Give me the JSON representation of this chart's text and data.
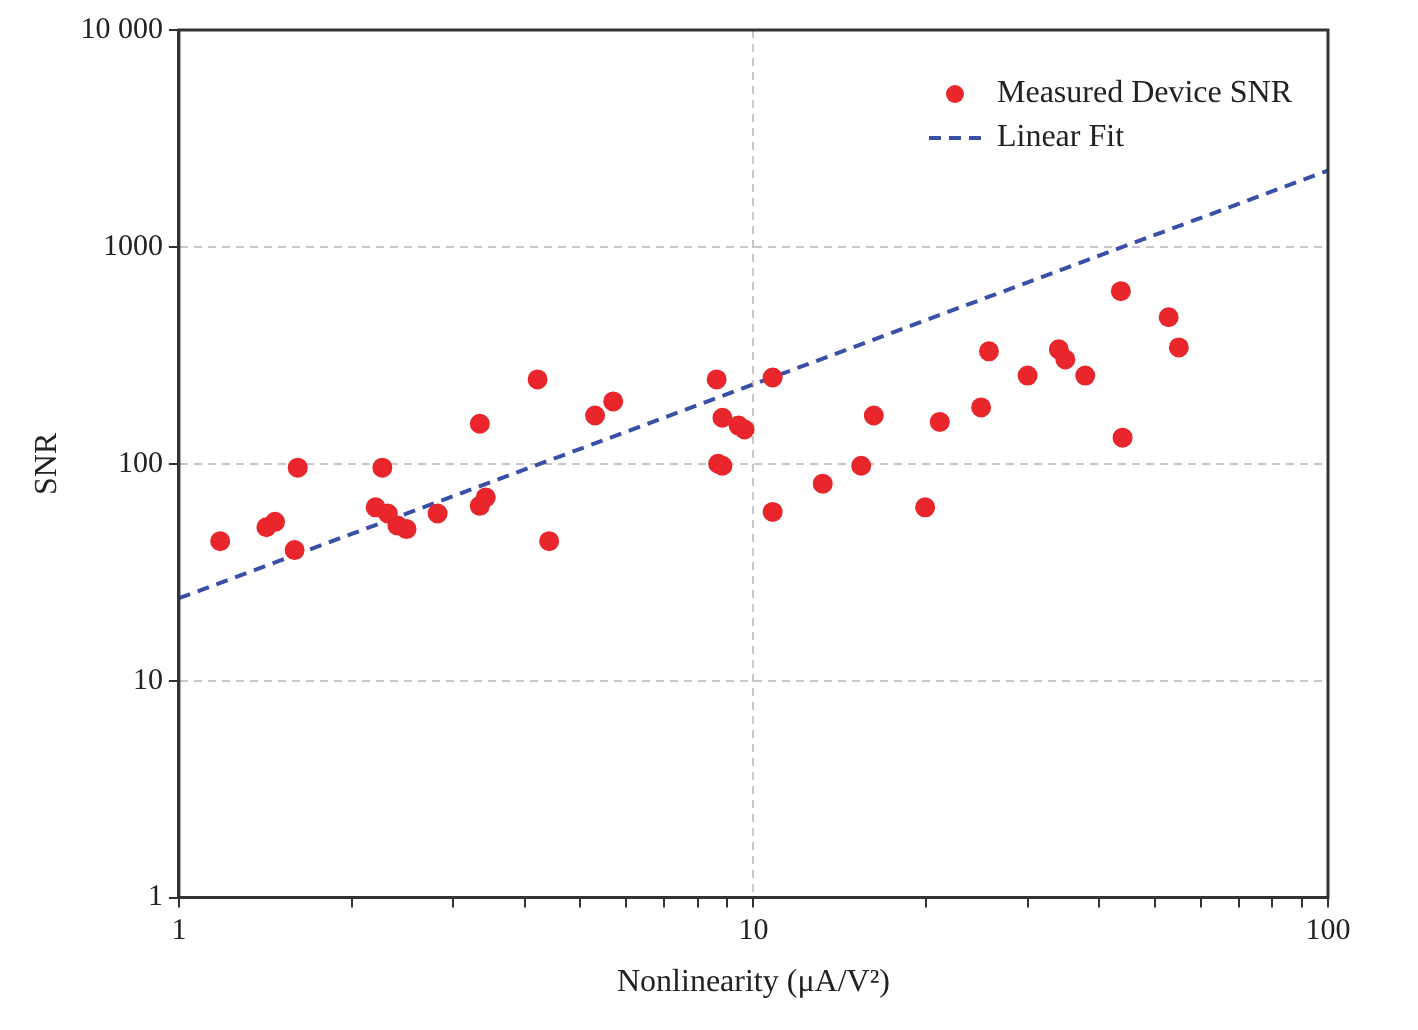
{
  "chart_data": {
    "type": "scatter",
    "xlabel": "Nonlinearity (μA/V²)",
    "ylabel": "SNR",
    "log": "xy",
    "grid": true,
    "legend": "top right",
    "xlim": [
      1,
      100
    ],
    "ylim": [
      1,
      10000
    ],
    "xticks": [
      1,
      {
        "value": 2,
        "label": null
      },
      {
        "value": 3,
        "label": null
      },
      {
        "value": 4,
        "label": null
      },
      {
        "value": 5,
        "label": null
      },
      {
        "value": 6,
        "label": null
      },
      {
        "value": 7,
        "label": null
      },
      {
        "value": 8,
        "label": null
      },
      {
        "value": 9,
        "label": null
      },
      10,
      {
        "value": 20,
        "label": null
      },
      {
        "value": 30,
        "label": null
      },
      {
        "value": 40,
        "label": null
      },
      {
        "value": 50,
        "label": null
      },
      {
        "value": 60,
        "label": null
      },
      {
        "value": 70,
        "label": null
      },
      {
        "value": 80,
        "label": null
      },
      {
        "value": 90,
        "label": null
      },
      100
    ],
    "yticks": [
      1,
      10,
      100,
      1000,
      {
        "value": 10000,
        "label": "10 000"
      }
    ],
    "series": [
      {
        "name": "Measured Device SNR",
        "marker": "circle",
        "color": "#e8262b",
        "x": [
          1.18,
          1.42,
          1.47,
          1.61,
          1.59,
          2.2,
          2.26,
          2.31,
          2.4,
          2.49,
          2.82,
          3.34,
          3.34,
          3.42,
          4.21,
          4.41,
          5.3,
          5.7,
          8.63,
          8.68,
          8.83,
          8.83,
          9.42,
          9.65,
          10.8,
          10.8,
          13.2,
          15.4,
          16.2,
          19.9,
          21.1,
          24.9,
          25.7,
          30,
          34,
          34.9,
          37.8,
          43.6,
          43.9,
          52.8,
          55
        ],
        "values": [
          44,
          51,
          54,
          96,
          40,
          63,
          96,
          59,
          52,
          50,
          59,
          153,
          64,
          70,
          245,
          44,
          167,
          194,
          245,
          100,
          98,
          163,
          150,
          144,
          250,
          60,
          81,
          98,
          167,
          63,
          156,
          182,
          330,
          255,
          337,
          303,
          255,
          625,
          132,
          474,
          344
        ]
      },
      {
        "name": "Linear Fit",
        "type": "line",
        "marker": "none",
        "line_style": "dashed",
        "color": "#3a4fa8",
        "x": [
          1,
          100
        ],
        "values": [
          24,
          2250
        ]
      }
    ]
  }
}
